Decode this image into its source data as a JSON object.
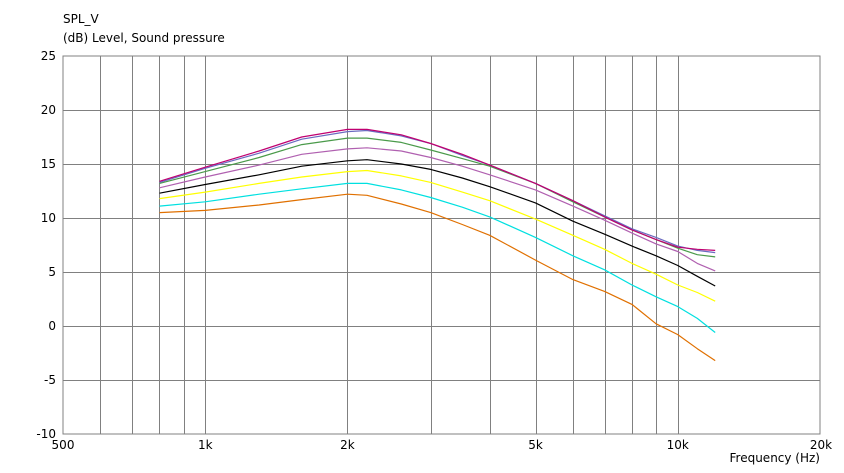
{
  "chart_data": {
    "type": "line",
    "title": "SPL_V",
    "ylabel": "(dB)  Level, Sound pressure",
    "xlabel": "Frequency  (Hz)",
    "xscale": "log",
    "xlim": [
      500,
      20000
    ],
    "ylim": [
      -10,
      25
    ],
    "grid": true,
    "xticks": [
      {
        "value": 500,
        "label": "500"
      },
      {
        "value": 1000,
        "label": "1k"
      },
      {
        "value": 2000,
        "label": "2k"
      },
      {
        "value": 5000,
        "label": "5k"
      },
      {
        "value": 10000,
        "label": "10k"
      },
      {
        "value": 20000,
        "label": "20k"
      }
    ],
    "xgrid_minor": [
      600,
      700,
      800,
      900,
      3000,
      4000,
      6000,
      7000,
      8000,
      9000
    ],
    "yticks": [
      {
        "value": 25,
        "label": "25"
      },
      {
        "value": 20,
        "label": "20"
      },
      {
        "value": 15,
        "label": "15"
      },
      {
        "value": 10,
        "label": "10"
      },
      {
        "value": 5,
        "label": "5"
      },
      {
        "value": 0,
        "label": "0"
      },
      {
        "value": -5,
        "label": "-5"
      },
      {
        "value": -10,
        "label": "-10"
      }
    ],
    "x": [
      800,
      1000,
      1300,
      1600,
      2000,
      2200,
      2600,
      3000,
      3500,
      4000,
      5000,
      6000,
      7000,
      8000,
      9000,
      10000,
      11000,
      12000
    ],
    "series": [
      {
        "color": "#e07000",
        "values": [
          10.5,
          10.7,
          11.2,
          11.7,
          12.2,
          12.1,
          11.3,
          10.5,
          9.4,
          8.4,
          6.1,
          4.3,
          3.2,
          2.0,
          0.2,
          -0.8,
          -2.1,
          -3.2
        ]
      },
      {
        "color": "#00e0e0",
        "values": [
          11.1,
          11.5,
          12.2,
          12.7,
          13.2,
          13.2,
          12.6,
          11.9,
          11.0,
          10.1,
          8.2,
          6.5,
          5.2,
          3.8,
          2.7,
          1.8,
          0.7,
          -0.6
        ]
      },
      {
        "color": "#ffff00",
        "values": [
          11.8,
          12.4,
          13.2,
          13.8,
          14.3,
          14.4,
          13.9,
          13.3,
          12.4,
          11.6,
          9.9,
          8.4,
          7.1,
          5.8,
          4.8,
          3.8,
          3.1,
          2.3
        ]
      },
      {
        "color": "#000000",
        "values": [
          12.3,
          13.1,
          14.0,
          14.8,
          15.3,
          15.4,
          15.0,
          14.5,
          13.7,
          12.9,
          11.4,
          9.7,
          8.5,
          7.4,
          6.5,
          5.6,
          4.6,
          3.7
        ]
      },
      {
        "color": "#b060b0",
        "values": [
          12.8,
          13.8,
          14.9,
          15.9,
          16.4,
          16.5,
          16.2,
          15.6,
          14.8,
          14.0,
          12.6,
          11.1,
          9.8,
          8.6,
          7.6,
          6.9,
          5.8,
          5.1
        ]
      },
      {
        "color": "#4a9a4a",
        "values": [
          13.2,
          14.3,
          15.6,
          16.8,
          17.4,
          17.4,
          17.0,
          16.3,
          15.5,
          14.8,
          13.2,
          11.5,
          10.1,
          8.9,
          8.0,
          7.2,
          6.6,
          6.4
        ]
      },
      {
        "color": "#6a6ac0",
        "values": [
          13.3,
          14.6,
          16.0,
          17.3,
          18.0,
          18.1,
          17.6,
          16.9,
          15.8,
          14.9,
          13.2,
          11.6,
          10.2,
          9.0,
          8.2,
          7.4,
          7.0,
          6.8
        ]
      },
      {
        "color": "#c00070",
        "values": [
          13.4,
          14.7,
          16.2,
          17.5,
          18.2,
          18.2,
          17.7,
          16.9,
          15.9,
          14.9,
          13.2,
          11.6,
          10.1,
          8.9,
          8.0,
          7.3,
          7.1,
          7.0
        ]
      }
    ]
  }
}
